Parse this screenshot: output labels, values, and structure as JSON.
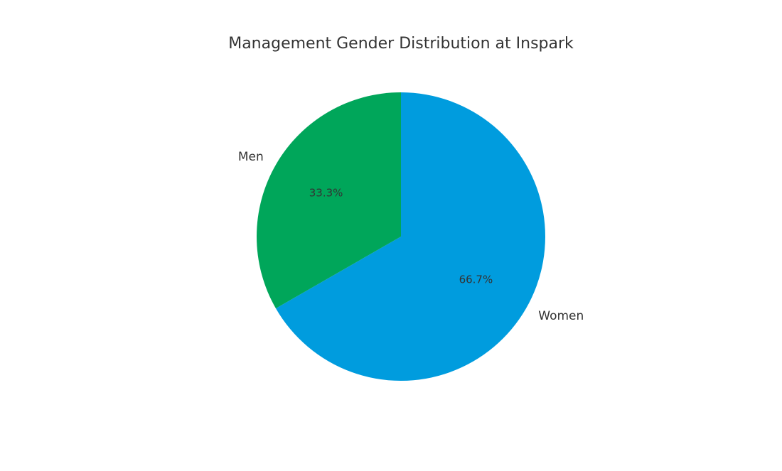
{
  "chart_data": {
    "type": "pie",
    "title": "Management Gender Distribution at Inspark",
    "categories": [
      "Women",
      "Men"
    ],
    "values": [
      66.7,
      33.3
    ],
    "value_labels": [
      "66.7%",
      "33.3%"
    ],
    "colors": [
      "#009cde",
      "#00a65a"
    ]
  }
}
